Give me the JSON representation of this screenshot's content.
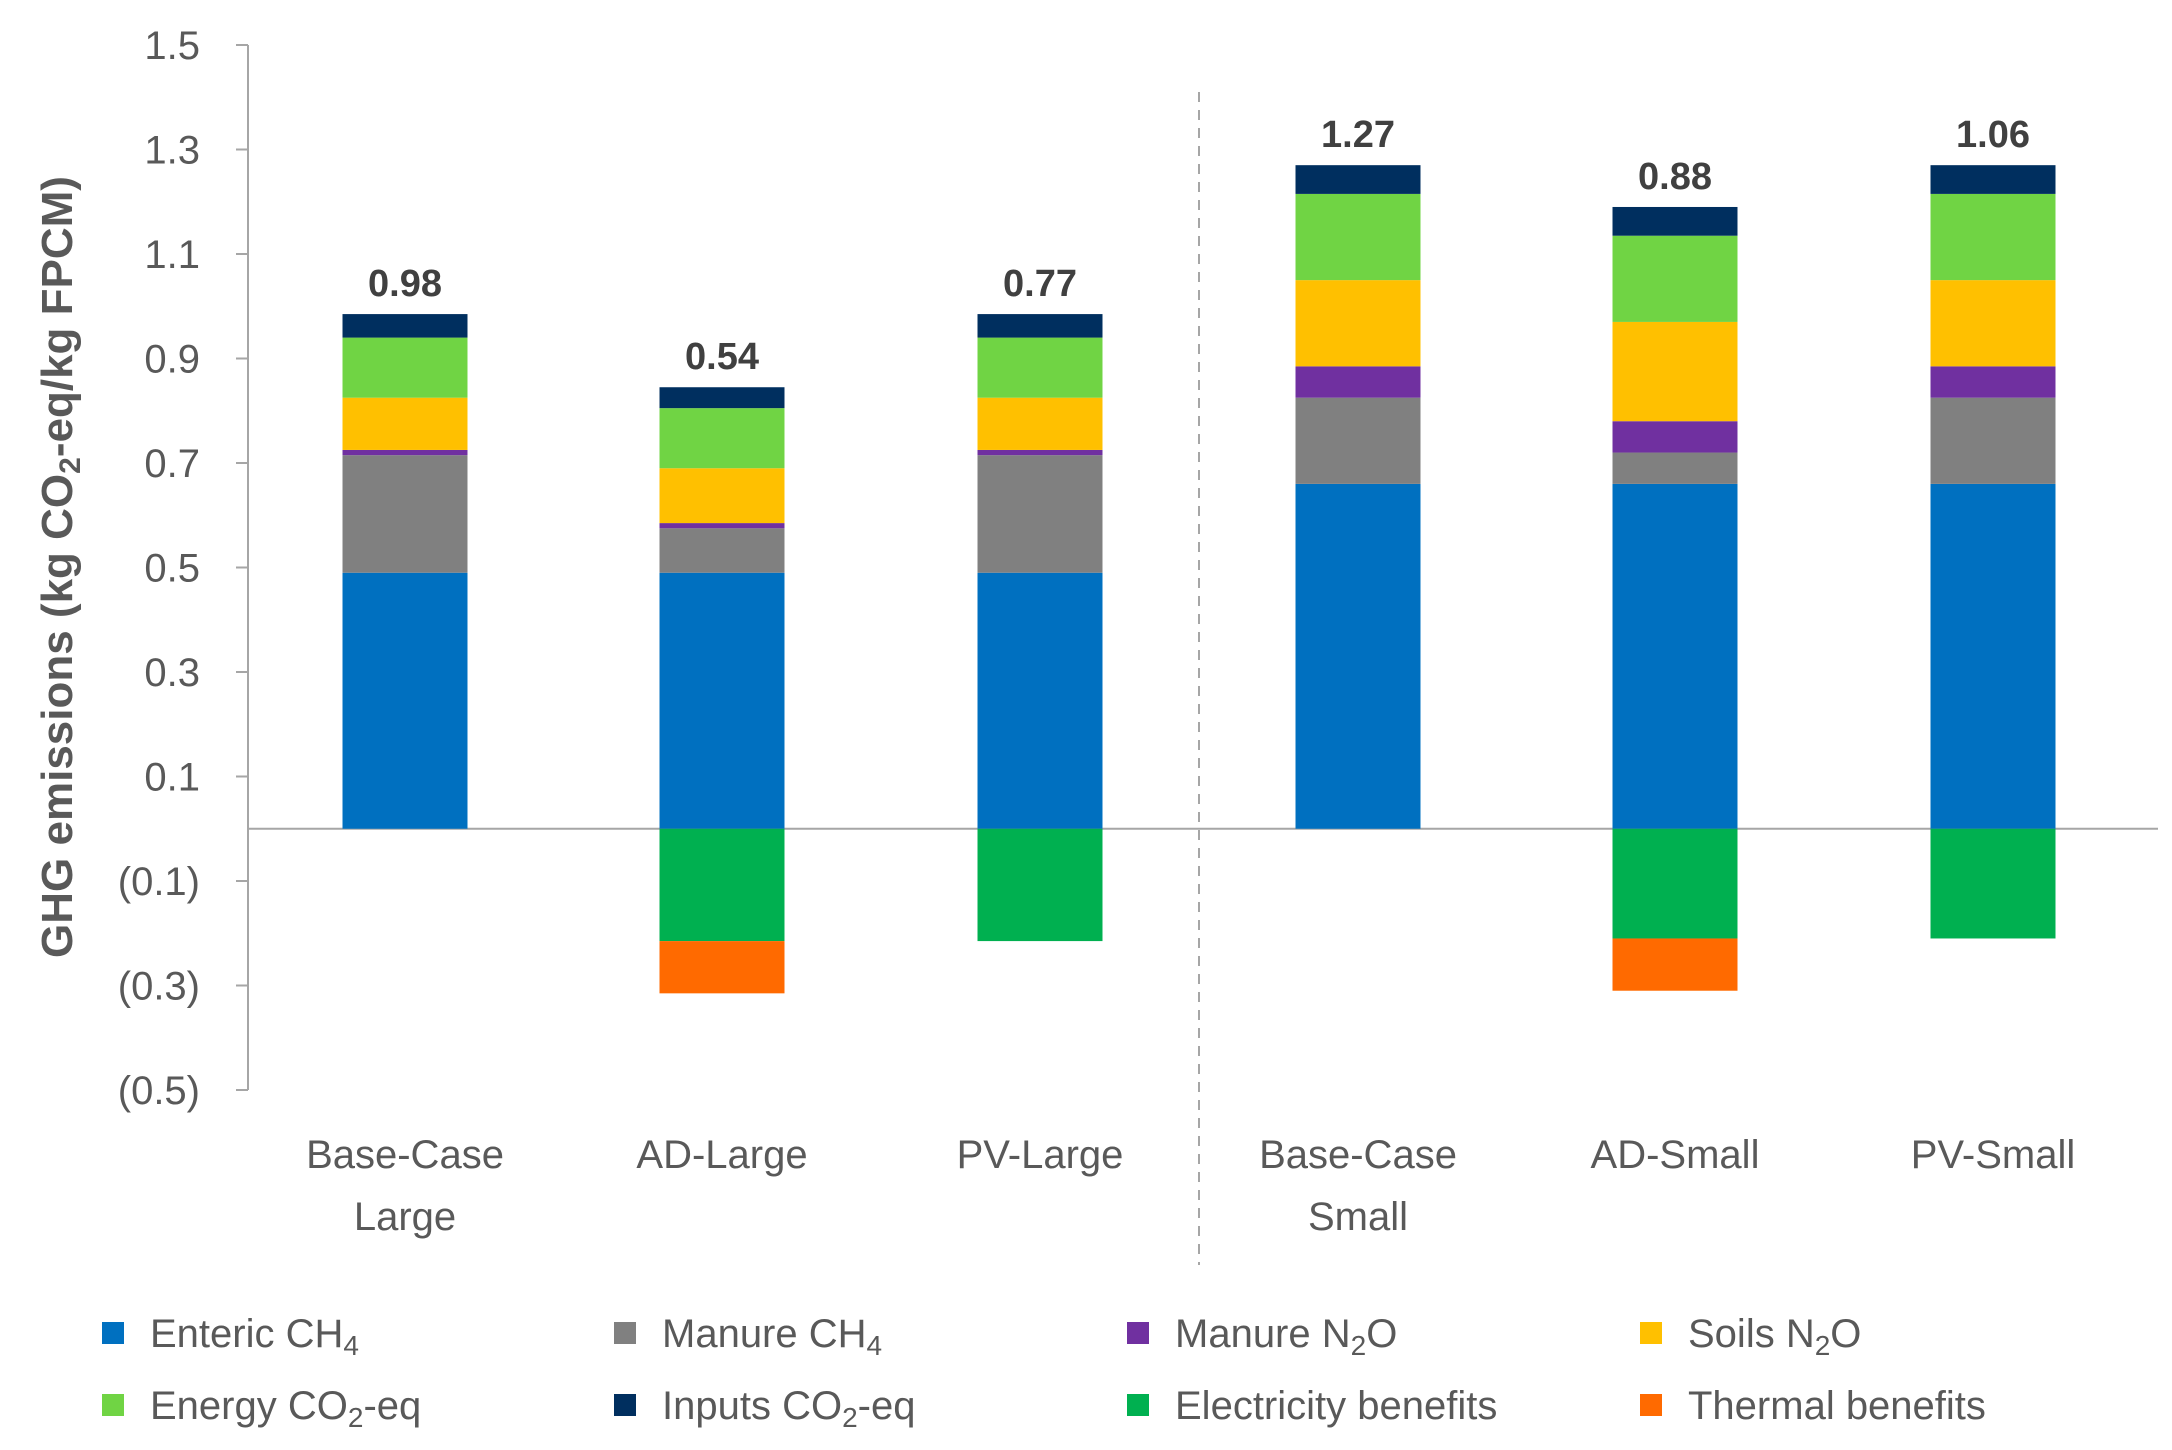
{
  "chart_data": {
    "type": "bar",
    "stacked": true,
    "title": "",
    "xlabel": "",
    "ylabel": {
      "prefix": "GHG emissions (kg CO",
      "sub": "2",
      "suffix": "-eq/kg FPCM)"
    },
    "ylim": [
      -0.5,
      1.5
    ],
    "yticks": [
      1.5,
      1.3,
      1.1,
      0.9,
      0.7,
      0.5,
      0.3,
      0.1,
      -0.1,
      -0.3,
      -0.5
    ],
    "ytick_labels": [
      "1.5",
      "1.3",
      "1.1",
      "0.9",
      "0.7",
      "0.5",
      "0.3",
      "0.1",
      "(0.1)",
      "(0.3)",
      "(0.5)"
    ],
    "categories": [
      [
        "Base-Case",
        "Large"
      ],
      [
        "AD-Large"
      ],
      [
        "PV-Large"
      ],
      [
        "Base-Case",
        "Small"
      ],
      [
        "AD-Small"
      ],
      [
        "PV-Small"
      ]
    ],
    "group_separator_after_index": 2,
    "totals": [
      "0.98",
      "0.54",
      "0.77",
      "1.27",
      "0.88",
      "1.06"
    ],
    "series": [
      {
        "name": "Enteric CH4",
        "label_parts": [
          "Enteric CH",
          "4",
          ""
        ],
        "color": "#0070C0",
        "values": [
          0.49,
          0.49,
          0.49,
          0.66,
          0.66,
          0.66
        ]
      },
      {
        "name": "Manure CH4",
        "label_parts": [
          "Manure CH",
          "4",
          ""
        ],
        "color": "#808080",
        "values": [
          0.225,
          0.085,
          0.225,
          0.165,
          0.06,
          0.165
        ]
      },
      {
        "name": "Manure N2O",
        "label_parts": [
          "Manure N",
          "2",
          "O"
        ],
        "color": "#7030A0",
        "values": [
          0.01,
          0.01,
          0.01,
          0.06,
          0.06,
          0.06
        ]
      },
      {
        "name": "Soils N2O",
        "label_parts": [
          "Soils N",
          "2",
          "O"
        ],
        "color": "#FFC000",
        "values": [
          0.1,
          0.105,
          0.1,
          0.165,
          0.19,
          0.165
        ]
      },
      {
        "name": "Energy CO2-eq",
        "label_parts": [
          "Energy CO",
          "2",
          "-eq"
        ],
        "color": "#70D444",
        "values": [
          0.115,
          0.115,
          0.115,
          0.165,
          0.165,
          0.165
        ]
      },
      {
        "name": "Inputs CO2-eq",
        "label_parts": [
          "Inputs CO",
          "2",
          "-eq"
        ],
        "color": "#002F5F",
        "values": [
          0.045,
          0.04,
          0.045,
          0.055,
          0.055,
          0.055
        ]
      },
      {
        "name": "Electricity benefits",
        "label_parts": [
          "Electricity benefits",
          "",
          ""
        ],
        "color": "#00B050",
        "values": [
          0,
          -0.215,
          -0.215,
          0,
          -0.21,
          -0.21
        ]
      },
      {
        "name": "Thermal benefits",
        "label_parts": [
          "Thermal benefits",
          "",
          ""
        ],
        "color": "#FF6A00",
        "values": [
          0,
          -0.1,
          0,
          0,
          -0.1,
          0
        ]
      }
    ],
    "legend": {
      "position": "bottom",
      "columns": 4
    },
    "grid": false
  }
}
